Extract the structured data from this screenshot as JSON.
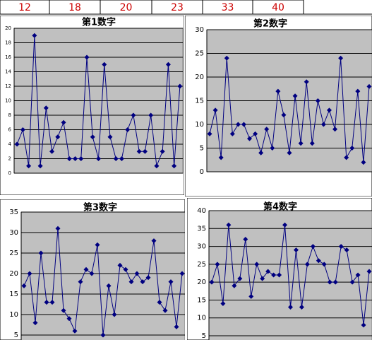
{
  "header_cells": [
    12,
    18,
    20,
    23,
    33,
    40
  ],
  "chart_data": [
    {
      "type": "line",
      "title": "第1数字",
      "color": "#000080",
      "grid": true,
      "ylim": [
        0,
        20
      ],
      "yticks": [
        0,
        2,
        4,
        6,
        8,
        10,
        12,
        14,
        16,
        18,
        20
      ],
      "values": [
        4,
        6,
        1,
        19,
        1,
        9,
        3,
        5,
        7,
        2,
        2,
        2,
        16,
        5,
        2,
        15,
        5,
        2,
        2,
        6,
        8,
        3,
        3,
        8,
        1,
        3,
        15,
        1,
        12
      ]
    },
    {
      "type": "line",
      "title": "第2数字",
      "color": "#000080",
      "grid": true,
      "ylim": [
        0,
        30
      ],
      "yticks": [
        0,
        5,
        10,
        15,
        20,
        25,
        30
      ],
      "values": [
        8,
        13,
        3,
        24,
        8,
        10,
        10,
        7,
        8,
        4,
        9,
        5,
        17,
        12,
        4,
        16,
        6,
        19,
        6,
        15,
        10,
        13,
        9,
        24,
        3,
        5,
        17,
        2,
        18
      ]
    },
    {
      "type": "line",
      "title": "第3数字",
      "color": "#000080",
      "grid": true,
      "ylim": [
        0,
        35
      ],
      "yticks": [
        5,
        10,
        15,
        20,
        25,
        30,
        35
      ],
      "values": [
        17,
        20,
        8,
        25,
        13,
        13,
        31,
        11,
        9,
        6,
        18,
        21,
        20,
        27,
        5,
        17,
        10,
        22,
        21,
        18,
        20,
        18,
        19,
        28,
        13,
        11,
        18,
        7,
        20
      ]
    },
    {
      "type": "line",
      "title": "第4数字",
      "color": "#000080",
      "grid": true,
      "ylim": [
        0,
        40
      ],
      "yticks": [
        5,
        10,
        15,
        20,
        25,
        30,
        35,
        40
      ],
      "values": [
        20,
        25,
        14,
        36,
        19,
        21,
        32,
        16,
        25,
        21,
        23,
        22,
        22,
        36,
        13,
        29,
        13,
        25,
        30,
        26,
        25,
        20,
        20,
        30,
        29,
        20,
        22,
        8,
        23
      ]
    }
  ]
}
